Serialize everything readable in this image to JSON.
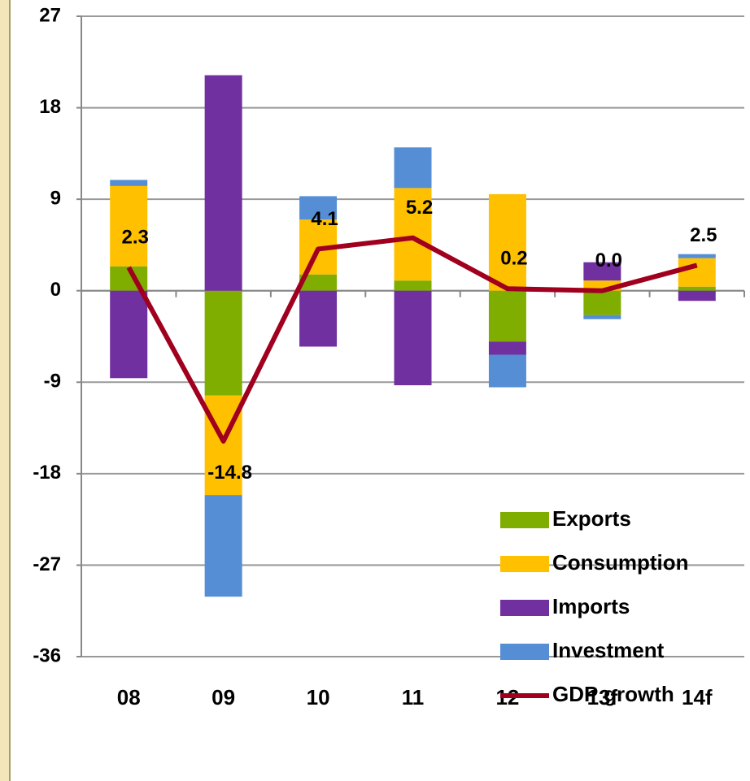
{
  "chart_data": {
    "type": "bar",
    "categories": [
      "08",
      "09",
      "10",
      "11",
      "12",
      "13f",
      "14f"
    ],
    "series": [
      {
        "name": "Exports",
        "color": "#7fad00",
        "values": [
          2.4,
          -10.3,
          1.6,
          1.0,
          -5.0,
          -2.4,
          0.4
        ]
      },
      {
        "name": "Consumption",
        "color": "#ffc000",
        "values": [
          7.9,
          -9.8,
          5.4,
          9.1,
          9.5,
          1.0,
          2.8
        ]
      },
      {
        "name": "Imports",
        "color": "#7030a0",
        "values": [
          -8.6,
          21.2,
          -5.5,
          -9.3,
          -1.3,
          1.8,
          -1.0
        ]
      },
      {
        "name": "Investment",
        "color": "#558ed5",
        "values": [
          0.6,
          -10.0,
          2.3,
          4.0,
          -3.2,
          -0.4,
          0.4
        ]
      },
      {
        "name": "GDP growth",
        "color": "#a0001e",
        "type": "line",
        "values": [
          2.3,
          -14.8,
          4.1,
          5.2,
          0.2,
          0.0,
          2.5
        ],
        "value_labels": [
          "2.3",
          "-14.8",
          "4.1",
          "5.2",
          "0.2",
          "0.0",
          "2.5"
        ]
      }
    ],
    "ylim": [
      -36,
      27
    ],
    "yticks": [
      -36,
      -27,
      -18,
      -9,
      0,
      9,
      18,
      27
    ],
    "grid": true,
    "legend": "lower right"
  }
}
